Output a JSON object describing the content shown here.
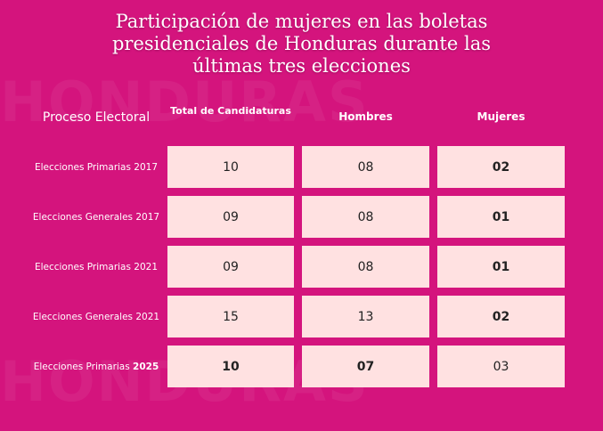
{
  "background_words": [
    "HONDURAS",
    "HONDURAS"
  ],
  "title_lines": [
    "Participación de mujeres en las boletas",
    "presidenciales de Honduras durante las",
    "últimas tres elecciones"
  ],
  "headers": {
    "process": "Proceso Electoral",
    "total": "Total de Candidaturas",
    "men": "Hombres",
    "women": "Mujeres"
  },
  "chart_data": {
    "type": "table",
    "columns": [
      "Proceso Electoral",
      "Total de Candidaturas",
      "Hombres",
      "Mujeres"
    ],
    "rows": [
      {
        "label": "Elecciones Primarias 2017",
        "total": "10",
        "men": "08",
        "women": "02"
      },
      {
        "label": "Elecciones Generales 2017",
        "total": "09",
        "men": "08",
        "women": "01"
      },
      {
        "label": "Elecciones Primarias 2021",
        "total": "09",
        "men": "08",
        "women": "01"
      },
      {
        "label": "Elecciones Generales 2021",
        "total": "15",
        "men": "13",
        "women": "02"
      },
      {
        "label_prefix": "Elecciones Primarias ",
        "label_year": "2025",
        "total": "10",
        "men": "07",
        "women": "03"
      }
    ]
  },
  "colors": {
    "background": "#d4147d",
    "cell": "#ffe1e1"
  }
}
